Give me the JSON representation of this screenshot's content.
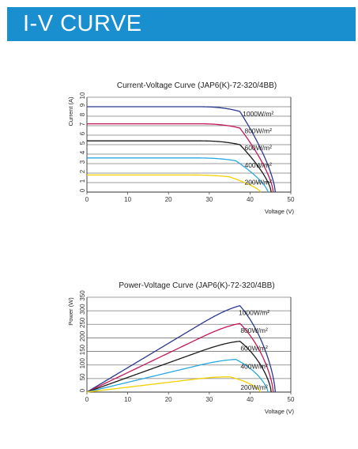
{
  "header": {
    "title": "I-V CURVE"
  },
  "colors": {
    "banner": "#1a8fd0",
    "series": [
      "#2b3990",
      "#c2185b",
      "#1a1a1a",
      "#29a8e0",
      "#f4d000"
    ]
  },
  "chart_data": [
    {
      "type": "line",
      "title": "Current-Voltage Curve (JAP6(K)-72-320/4BB)",
      "xlabel": "Voltage (V)",
      "ylabel": "Current (A)",
      "xlim": [
        0,
        50
      ],
      "ylim": [
        0,
        10
      ],
      "xticks": [
        0,
        10,
        20,
        30,
        40,
        50
      ],
      "yticks": [
        0,
        1,
        2,
        3,
        4,
        5,
        6,
        7,
        8,
        9,
        10
      ],
      "grid": true,
      "series": [
        {
          "name": "1000W/m²",
          "isc": 9.0,
          "voc": 46.2,
          "vmp": 37.5,
          "imp": 8.5
        },
        {
          "name": "800W/m²",
          "isc": 7.2,
          "voc": 45.7,
          "vmp": 37.5,
          "imp": 6.75
        },
        {
          "name": "600W/m²",
          "isc": 5.4,
          "voc": 45.2,
          "vmp": 37.5,
          "imp": 5.0
        },
        {
          "name": "400W/m²",
          "isc": 3.6,
          "voc": 44.4,
          "vmp": 36.5,
          "imp": 3.3
        },
        {
          "name": "200W/m²",
          "isc": 1.8,
          "voc": 42.6,
          "vmp": 35.0,
          "imp": 1.6
        }
      ]
    },
    {
      "type": "line",
      "title": "Power-Voltage Curve (JAP6(K)-72-320/4BB)",
      "xlabel": "Voltage (V)",
      "ylabel": "Power (W)",
      "xlim": [
        0,
        50
      ],
      "ylim": [
        0,
        350
      ],
      "xticks": [
        0,
        10,
        20,
        30,
        40,
        50
      ],
      "yticks": [
        0,
        50,
        100,
        150,
        200,
        250,
        300,
        350
      ],
      "grid": true,
      "series": [
        {
          "name": "1000W/m²",
          "isc": 9.0,
          "voc": 46.2,
          "vmp": 37.5,
          "imp": 8.5
        },
        {
          "name": "800W/m²",
          "isc": 7.2,
          "voc": 45.7,
          "vmp": 37.5,
          "imp": 6.75
        },
        {
          "name": "600W/m²",
          "isc": 5.4,
          "voc": 45.2,
          "vmp": 37.5,
          "imp": 5.0
        },
        {
          "name": "400W/m²",
          "isc": 3.6,
          "voc": 44.4,
          "vmp": 36.5,
          "imp": 3.3
        },
        {
          "name": "200W/m²",
          "isc": 1.8,
          "voc": 42.6,
          "vmp": 35.0,
          "imp": 1.6
        }
      ]
    }
  ]
}
